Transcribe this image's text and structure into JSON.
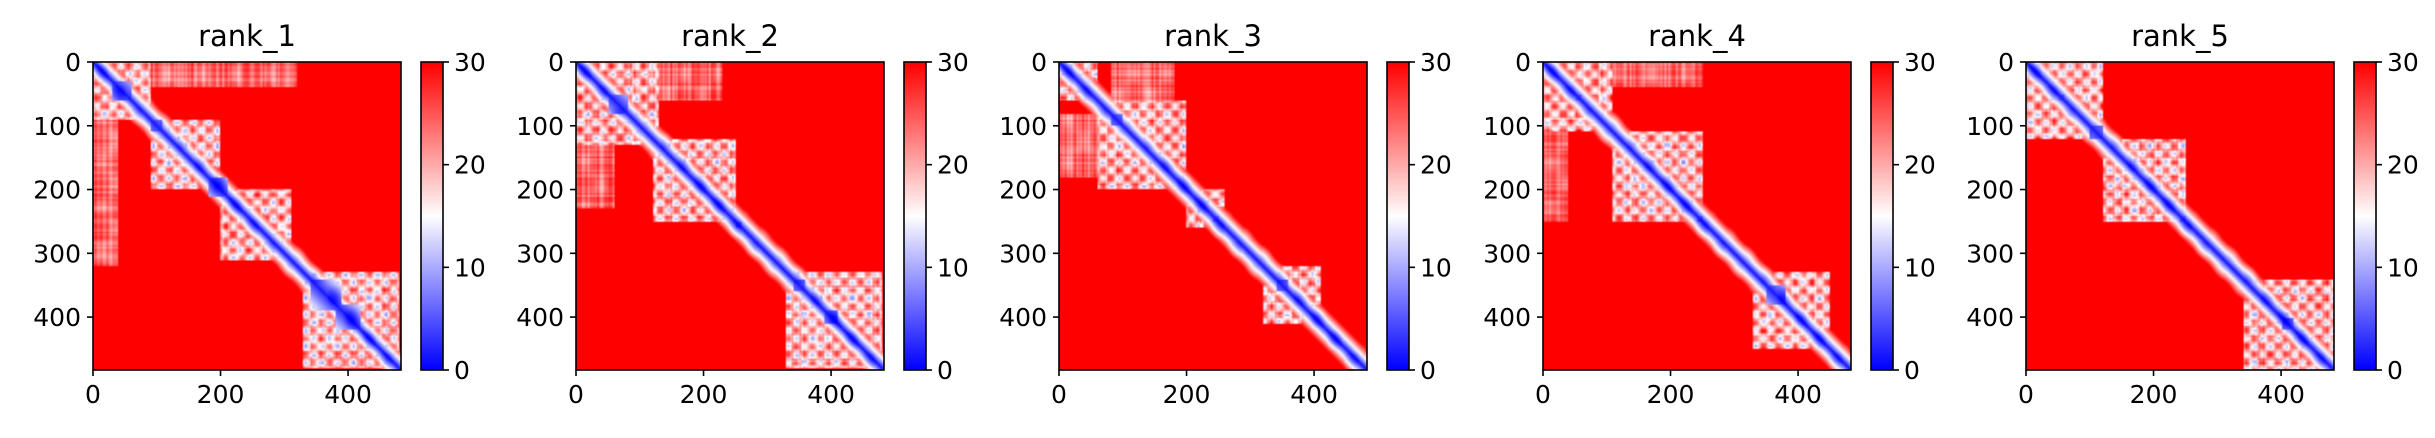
{
  "chart_data": [
    {
      "type": "heatmap",
      "title": "rank_1",
      "xlabel": "",
      "ylabel": "",
      "xlim": [
        0,
        483
      ],
      "ylim": [
        483,
        0
      ],
      "x_ticks": [
        0,
        200,
        400
      ],
      "y_ticks": [
        0,
        100,
        200,
        300,
        400
      ],
      "colorbar": {
        "min": 0,
        "max": 30,
        "ticks": [
          0,
          10,
          20,
          30
        ],
        "colormap": "bwr"
      },
      "structure": {
        "size": 483,
        "domains": [
          [
            0,
            90
          ],
          [
            90,
            200
          ],
          [
            200,
            310
          ],
          [
            330,
            480
          ]
        ],
        "interfaces": [
          [
            40,
            320
          ]
        ],
        "hotspots": [
          [
            30,
            60
          ],
          [
            90,
            110
          ],
          [
            180,
            210
          ],
          [
            340,
            390
          ],
          [
            380,
            420
          ]
        ]
      }
    },
    {
      "type": "heatmap",
      "title": "rank_2",
      "xlabel": "",
      "ylabel": "",
      "xlim": [
        0,
        483
      ],
      "ylim": [
        483,
        0
      ],
      "x_ticks": [
        0,
        200,
        400
      ],
      "y_ticks": [
        0,
        100,
        200,
        300,
        400
      ],
      "colorbar": {
        "min": 0,
        "max": 30,
        "ticks": [
          0,
          10,
          20,
          30
        ],
        "colormap": "bwr"
      },
      "structure": {
        "size": 483,
        "domains": [
          [
            0,
            130
          ],
          [
            120,
            250
          ],
          [
            330,
            480
          ]
        ],
        "interfaces": [
          [
            60,
            230
          ]
        ],
        "hotspots": [
          [
            50,
            80
          ],
          [
            250,
            260
          ],
          [
            340,
            360
          ],
          [
            390,
            410
          ]
        ]
      }
    },
    {
      "type": "heatmap",
      "title": "rank_3",
      "xlabel": "",
      "ylabel": "",
      "xlim": [
        0,
        483
      ],
      "ylim": [
        483,
        0
      ],
      "x_ticks": [
        0,
        200,
        400
      ],
      "y_ticks": [
        0,
        100,
        200,
        300,
        400
      ],
      "colorbar": {
        "min": 0,
        "max": 30,
        "ticks": [
          0,
          10,
          20,
          30
        ],
        "colormap": "bwr"
      },
      "structure": {
        "size": 483,
        "domains": [
          [
            0,
            60
          ],
          [
            60,
            200
          ],
          [
            200,
            260
          ],
          [
            320,
            410
          ]
        ],
        "interfaces": [
          [
            80,
            180
          ]
        ],
        "hotspots": [
          [
            80,
            100
          ],
          [
            240,
            250
          ],
          [
            340,
            360
          ]
        ]
      }
    },
    {
      "type": "heatmap",
      "title": "rank_4",
      "xlabel": "",
      "ylabel": "",
      "xlim": [
        0,
        483
      ],
      "ylim": [
        483,
        0
      ],
      "x_ticks": [
        0,
        200,
        400
      ],
      "y_ticks": [
        0,
        100,
        200,
        300,
        400
      ],
      "colorbar": {
        "min": 0,
        "max": 30,
        "ticks": [
          0,
          10,
          20,
          30
        ],
        "colormap": "bwr"
      },
      "structure": {
        "size": 483,
        "domains": [
          [
            0,
            110
          ],
          [
            110,
            250
          ],
          [
            330,
            450
          ]
        ],
        "interfaces": [
          [
            40,
            250
          ]
        ],
        "hotspots": [
          [
            50,
            60
          ],
          [
            240,
            250
          ],
          [
            350,
            380
          ]
        ]
      }
    },
    {
      "type": "heatmap",
      "title": "rank_5",
      "xlabel": "",
      "ylabel": "",
      "xlim": [
        0,
        483
      ],
      "ylim": [
        483,
        0
      ],
      "x_ticks": [
        0,
        200,
        400
      ],
      "y_ticks": [
        0,
        100,
        200,
        300,
        400
      ],
      "colorbar": {
        "min": 0,
        "max": 30,
        "ticks": [
          0,
          10,
          20,
          30
        ],
        "colormap": "bwr"
      },
      "structure": {
        "size": 483,
        "domains": [
          [
            0,
            120
          ],
          [
            120,
            250
          ],
          [
            340,
            483
          ]
        ],
        "interfaces": [],
        "hotspots": [
          [
            50,
            60
          ],
          [
            100,
            120
          ],
          [
            240,
            250
          ],
          [
            400,
            420
          ]
        ]
      }
    }
  ]
}
